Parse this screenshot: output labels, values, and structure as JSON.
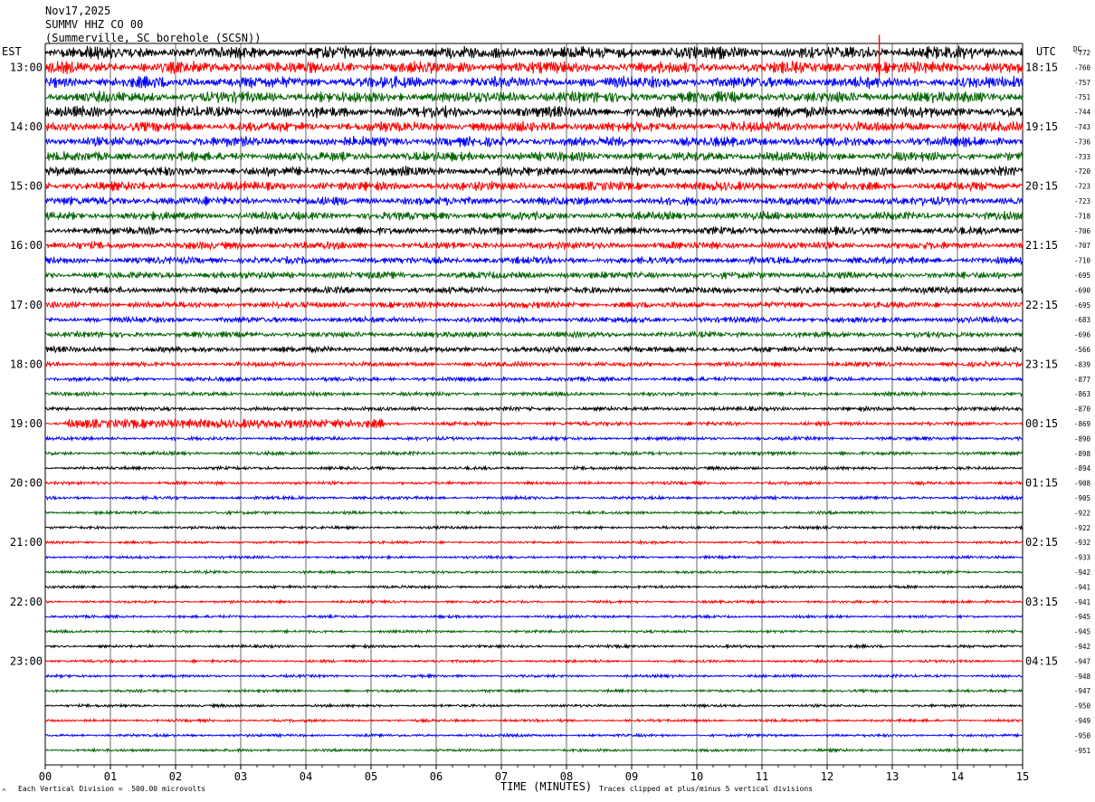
{
  "header": {
    "date": "Nov17,2025",
    "station": "SUMMV HHZ CO 00",
    "location": "(Summerville, SC borehole (SCSN))"
  },
  "chart_data": {
    "type": "line",
    "title": "SUMMV HHZ CO 00",
    "left_timezone": "EST",
    "right_timezone": "UTC",
    "dc_header": "DC",
    "xlabel": "TIME (MINUTES)",
    "xlim": [
      0,
      15
    ],
    "x_ticks": [
      "00",
      "01",
      "02",
      "03",
      "04",
      "05",
      "06",
      "07",
      "08",
      "09",
      "10",
      "11",
      "12",
      "13",
      "14",
      "15"
    ],
    "trace_count": 48,
    "trace_minutes": 15,
    "trace_colors": [
      "#000000",
      "#ff0000",
      "#0000ff",
      "#006400"
    ],
    "first_trace_est": "12:45",
    "hour_labels_est": [
      "13:00",
      "14:00",
      "15:00",
      "16:00",
      "17:00",
      "18:00",
      "19:00",
      "20:00",
      "21:00",
      "22:00",
      "23:00"
    ],
    "hour_labels_utc": [
      "18:15",
      "19:15",
      "20:15",
      "21:15",
      "22:15",
      "23:15",
      "00:15",
      "01:15",
      "02:15",
      "03:15",
      "04:15"
    ],
    "dc_offsets": [
      -772,
      -760,
      -757,
      -751,
      -744,
      -743,
      -736,
      -733,
      -720,
      -723,
      -723,
      -718,
      -706,
      -707,
      -710,
      -695,
      -690,
      -695,
      -683,
      -696,
      -566,
      -839,
      -877,
      -863,
      -870,
      -869,
      -890,
      -898,
      -894,
      -908,
      -905,
      -922,
      -922,
      -932,
      -933,
      -942,
      -941,
      -941,
      -945,
      -945,
      -942,
      -947,
      -948,
      -947,
      -950,
      -949,
      -950,
      -951
    ],
    "trace_amplitude_divisions": [
      3.2,
      3.0,
      3.0,
      2.9,
      2.8,
      2.6,
      2.5,
      2.4,
      2.4,
      2.3,
      2.2,
      2.1,
      2.0,
      1.9,
      1.8,
      1.8,
      1.7,
      1.6,
      1.5,
      1.5,
      1.5,
      1.2,
      1.1,
      1.0,
      1.0,
      1.0,
      0.9,
      0.9,
      0.8,
      0.8,
      0.8,
      0.8,
      0.7,
      0.7,
      0.7,
      0.7,
      0.7,
      0.7,
      0.7,
      0.7,
      0.7,
      0.7,
      0.7,
      0.7,
      0.7,
      0.7,
      0.7,
      0.7
    ],
    "events": [
      {
        "trace": 0,
        "minute": 12.8,
        "amplitude_divisions": 5.0
      },
      {
        "trace": 1,
        "minute": 12.8,
        "amplitude_divisions": 5.0
      },
      {
        "trace": 5,
        "minute": 12.9,
        "amplitude_divisions": 2.5
      },
      {
        "trace": 25,
        "minute": 0.3,
        "minute_end": 5.2,
        "amplitude_divisions": 2.2
      }
    ],
    "scale_note": "Each Vertical Division =  500.00 microvolts",
    "clip_note": "Traces clipped at plus/minus 5 vertical divisions",
    "corner_mark": "^"
  }
}
